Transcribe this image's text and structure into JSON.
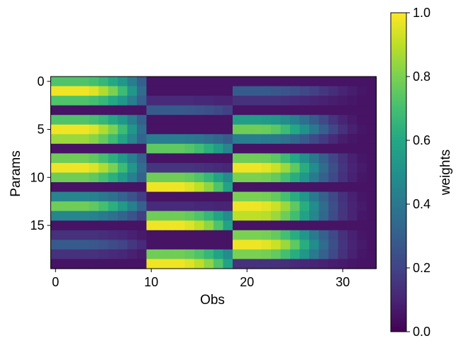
{
  "chart_data": {
    "type": "heatmap",
    "xlabel": "Obs",
    "ylabel": "Params",
    "colorbar_label": "weights",
    "colormap": "viridis",
    "vmin": 0.0,
    "vmax": 1.0,
    "n_cols": 34,
    "n_rows": 20,
    "x_ticks": [
      0,
      10,
      20,
      30
    ],
    "y_ticks": [
      0,
      5,
      10,
      15
    ],
    "colorbar_ticks": [
      "0.0",
      "0.2",
      "0.4",
      "0.6",
      "0.8",
      "1.0"
    ],
    "values": [
      [
        0.72,
        0.72,
        0.72,
        0.72,
        0.7,
        0.66,
        0.6,
        0.52,
        0.42,
        0.3,
        0.05,
        0.05,
        0.05,
        0.05,
        0.05,
        0.05,
        0.05,
        0.05,
        0.05,
        0.05,
        0.05,
        0.05,
        0.05,
        0.05,
        0.05,
        0.05,
        0.05,
        0.05,
        0.05,
        0.05,
        0.05,
        0.05,
        0.05,
        0.05
      ],
      [
        0.98,
        0.98,
        0.98,
        0.98,
        0.95,
        0.88,
        0.8,
        0.68,
        0.52,
        0.35,
        0.05,
        0.05,
        0.05,
        0.05,
        0.05,
        0.05,
        0.05,
        0.05,
        0.05,
        0.28,
        0.28,
        0.28,
        0.28,
        0.27,
        0.26,
        0.24,
        0.22,
        0.19,
        0.16,
        0.13,
        0.1,
        0.08,
        0.06,
        0.05
      ],
      [
        0.72,
        0.72,
        0.72,
        0.72,
        0.7,
        0.66,
        0.6,
        0.52,
        0.42,
        0.3,
        0.12,
        0.12,
        0.12,
        0.12,
        0.12,
        0.11,
        0.11,
        0.1,
        0.1,
        0.14,
        0.14,
        0.14,
        0.14,
        0.14,
        0.13,
        0.12,
        0.11,
        0.1,
        0.09,
        0.08,
        0.07,
        0.06,
        0.05,
        0.05
      ],
      [
        0.05,
        0.05,
        0.05,
        0.05,
        0.05,
        0.05,
        0.05,
        0.05,
        0.05,
        0.05,
        0.28,
        0.28,
        0.28,
        0.28,
        0.27,
        0.26,
        0.24,
        0.22,
        0.19,
        0.05,
        0.05,
        0.05,
        0.05,
        0.05,
        0.05,
        0.05,
        0.05,
        0.05,
        0.05,
        0.05,
        0.05,
        0.05,
        0.05,
        0.05
      ],
      [
        0.72,
        0.72,
        0.72,
        0.72,
        0.7,
        0.66,
        0.6,
        0.52,
        0.42,
        0.3,
        0.05,
        0.05,
        0.05,
        0.05,
        0.05,
        0.05,
        0.05,
        0.05,
        0.05,
        0.55,
        0.55,
        0.55,
        0.54,
        0.52,
        0.48,
        0.43,
        0.36,
        0.29,
        0.22,
        0.15,
        0.1,
        0.07,
        0.05,
        0.05
      ],
      [
        0.98,
        0.98,
        0.98,
        0.98,
        0.95,
        0.88,
        0.8,
        0.68,
        0.52,
        0.35,
        0.05,
        0.05,
        0.05,
        0.05,
        0.05,
        0.05,
        0.05,
        0.05,
        0.05,
        0.78,
        0.78,
        0.78,
        0.77,
        0.74,
        0.68,
        0.6,
        0.5,
        0.4,
        0.3,
        0.21,
        0.14,
        0.09,
        0.06,
        0.05
      ],
      [
        0.85,
        0.85,
        0.85,
        0.85,
        0.82,
        0.76,
        0.68,
        0.58,
        0.45,
        0.32,
        0.42,
        0.42,
        0.42,
        0.42,
        0.41,
        0.39,
        0.36,
        0.33,
        0.29,
        0.42,
        0.42,
        0.42,
        0.41,
        0.4,
        0.37,
        0.33,
        0.28,
        0.22,
        0.17,
        0.12,
        0.08,
        0.06,
        0.05,
        0.05
      ],
      [
        0.05,
        0.05,
        0.05,
        0.05,
        0.05,
        0.05,
        0.05,
        0.05,
        0.05,
        0.05,
        0.75,
        0.75,
        0.75,
        0.75,
        0.73,
        0.69,
        0.63,
        0.55,
        0.45,
        0.05,
        0.05,
        0.05,
        0.05,
        0.05,
        0.05,
        0.05,
        0.05,
        0.05,
        0.05,
        0.05,
        0.05,
        0.05,
        0.05,
        0.05
      ],
      [
        0.78,
        0.78,
        0.78,
        0.78,
        0.75,
        0.7,
        0.63,
        0.54,
        0.43,
        0.31,
        0.05,
        0.05,
        0.05,
        0.05,
        0.05,
        0.05,
        0.05,
        0.05,
        0.05,
        0.78,
        0.78,
        0.78,
        0.77,
        0.74,
        0.68,
        0.6,
        0.5,
        0.4,
        0.3,
        0.21,
        0.14,
        0.09,
        0.06,
        0.05
      ],
      [
        0.98,
        0.98,
        0.98,
        0.98,
        0.95,
        0.88,
        0.8,
        0.68,
        0.52,
        0.35,
        0.15,
        0.15,
        0.15,
        0.15,
        0.15,
        0.14,
        0.13,
        0.12,
        0.11,
        0.98,
        0.98,
        0.98,
        0.96,
        0.92,
        0.85,
        0.75,
        0.62,
        0.48,
        0.35,
        0.24,
        0.15,
        0.1,
        0.07,
        0.05
      ],
      [
        0.78,
        0.78,
        0.78,
        0.78,
        0.75,
        0.7,
        0.63,
        0.54,
        0.43,
        0.31,
        0.78,
        0.78,
        0.78,
        0.78,
        0.76,
        0.72,
        0.66,
        0.58,
        0.48,
        0.8,
        0.8,
        0.8,
        0.79,
        0.76,
        0.7,
        0.62,
        0.52,
        0.41,
        0.31,
        0.22,
        0.14,
        0.09,
        0.06,
        0.05
      ],
      [
        0.05,
        0.05,
        0.05,
        0.05,
        0.05,
        0.05,
        0.05,
        0.05,
        0.05,
        0.05,
        0.98,
        0.98,
        0.98,
        0.98,
        0.95,
        0.9,
        0.83,
        0.72,
        0.58,
        0.05,
        0.05,
        0.05,
        0.05,
        0.05,
        0.05,
        0.05,
        0.05,
        0.05,
        0.05,
        0.05,
        0.05,
        0.05,
        0.05,
        0.05
      ],
      [
        0.45,
        0.45,
        0.45,
        0.45,
        0.44,
        0.41,
        0.37,
        0.32,
        0.26,
        0.18,
        0.05,
        0.05,
        0.05,
        0.05,
        0.05,
        0.05,
        0.05,
        0.05,
        0.05,
        0.8,
        0.8,
        0.8,
        0.79,
        0.76,
        0.7,
        0.62,
        0.52,
        0.41,
        0.31,
        0.22,
        0.14,
        0.09,
        0.06,
        0.05
      ],
      [
        0.78,
        0.78,
        0.78,
        0.78,
        0.75,
        0.7,
        0.63,
        0.54,
        0.43,
        0.31,
        0.12,
        0.12,
        0.12,
        0.12,
        0.12,
        0.11,
        0.11,
        0.1,
        0.1,
        0.98,
        0.98,
        0.98,
        0.96,
        0.92,
        0.85,
        0.75,
        0.62,
        0.48,
        0.35,
        0.24,
        0.15,
        0.1,
        0.07,
        0.05
      ],
      [
        0.45,
        0.45,
        0.45,
        0.45,
        0.44,
        0.41,
        0.37,
        0.32,
        0.26,
        0.18,
        0.78,
        0.78,
        0.78,
        0.78,
        0.76,
        0.72,
        0.66,
        0.58,
        0.48,
        0.9,
        0.9,
        0.9,
        0.89,
        0.85,
        0.78,
        0.69,
        0.57,
        0.45,
        0.33,
        0.23,
        0.15,
        0.1,
        0.06,
        0.05
      ],
      [
        0.05,
        0.05,
        0.05,
        0.05,
        0.05,
        0.05,
        0.05,
        0.05,
        0.05,
        0.05,
        0.98,
        0.98,
        0.98,
        0.98,
        0.95,
        0.9,
        0.83,
        0.72,
        0.58,
        0.05,
        0.05,
        0.05,
        0.05,
        0.05,
        0.05,
        0.05,
        0.05,
        0.05,
        0.05,
        0.05,
        0.05,
        0.05,
        0.05,
        0.05
      ],
      [
        0.14,
        0.14,
        0.14,
        0.14,
        0.14,
        0.13,
        0.12,
        0.11,
        0.09,
        0.07,
        0.05,
        0.05,
        0.05,
        0.05,
        0.05,
        0.05,
        0.05,
        0.05,
        0.05,
        0.8,
        0.8,
        0.8,
        0.79,
        0.76,
        0.7,
        0.62,
        0.52,
        0.41,
        0.31,
        0.22,
        0.14,
        0.09,
        0.06,
        0.05
      ],
      [
        0.28,
        0.28,
        0.28,
        0.28,
        0.27,
        0.25,
        0.23,
        0.2,
        0.16,
        0.12,
        0.05,
        0.05,
        0.05,
        0.05,
        0.05,
        0.05,
        0.05,
        0.05,
        0.05,
        0.98,
        0.98,
        0.98,
        0.96,
        0.92,
        0.85,
        0.75,
        0.62,
        0.48,
        0.35,
        0.24,
        0.15,
        0.1,
        0.07,
        0.05
      ],
      [
        0.14,
        0.14,
        0.14,
        0.14,
        0.14,
        0.13,
        0.12,
        0.11,
        0.09,
        0.07,
        0.78,
        0.78,
        0.78,
        0.78,
        0.76,
        0.72,
        0.66,
        0.58,
        0.48,
        0.8,
        0.8,
        0.8,
        0.79,
        0.76,
        0.7,
        0.62,
        0.52,
        0.41,
        0.31,
        0.22,
        0.14,
        0.09,
        0.06,
        0.05
      ],
      [
        0.05,
        0.05,
        0.05,
        0.05,
        0.05,
        0.05,
        0.05,
        0.05,
        0.05,
        0.05,
        0.98,
        0.98,
        0.98,
        0.98,
        0.95,
        0.9,
        0.83,
        0.72,
        0.58,
        0.14,
        0.14,
        0.14,
        0.14,
        0.14,
        0.13,
        0.12,
        0.11,
        0.1,
        0.09,
        0.08,
        0.07,
        0.06,
        0.05,
        0.05
      ]
    ]
  }
}
